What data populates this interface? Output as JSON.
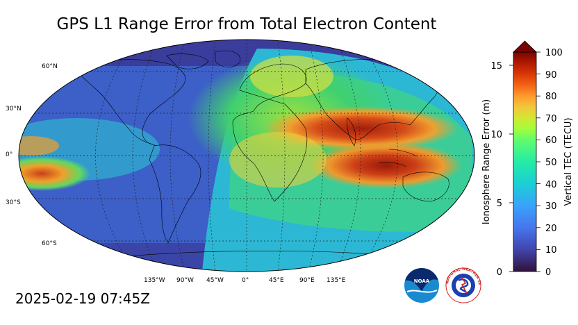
{
  "title": "GPS L1 Range Error from Total Electron Content",
  "timestamp": "2025-02-19 07:45Z",
  "map": {
    "lat_labels": [
      "60°N",
      "30°N",
      "0°",
      "30°S",
      "60°S"
    ],
    "lon_labels": [
      "135°W",
      "90°W",
      "45°W",
      "0°",
      "45°E",
      "90°E",
      "135°E"
    ],
    "colors": {
      "low": "#3b2d84",
      "blue": "#3c6fd8",
      "cyan": "#2cc0c8",
      "green": "#49d66b",
      "yellow": "#d8e040",
      "orange": "#f09a2c",
      "red": "#c8421a",
      "darkred": "#8e1a0a"
    }
  },
  "colorbar": {
    "left_label": "Ionosphere Range Error (m)",
    "right_label": "Vertical TEC (TECU)",
    "left_ticks": [
      "0",
      "5",
      "10",
      "15"
    ],
    "right_ticks": [
      "0",
      "10",
      "20",
      "30",
      "40",
      "50",
      "60",
      "70",
      "80",
      "90",
      "100"
    ]
  },
  "logos": {
    "noaa": "NOAA",
    "nws": "NATIONAL WEATHER SERVICE"
  }
}
